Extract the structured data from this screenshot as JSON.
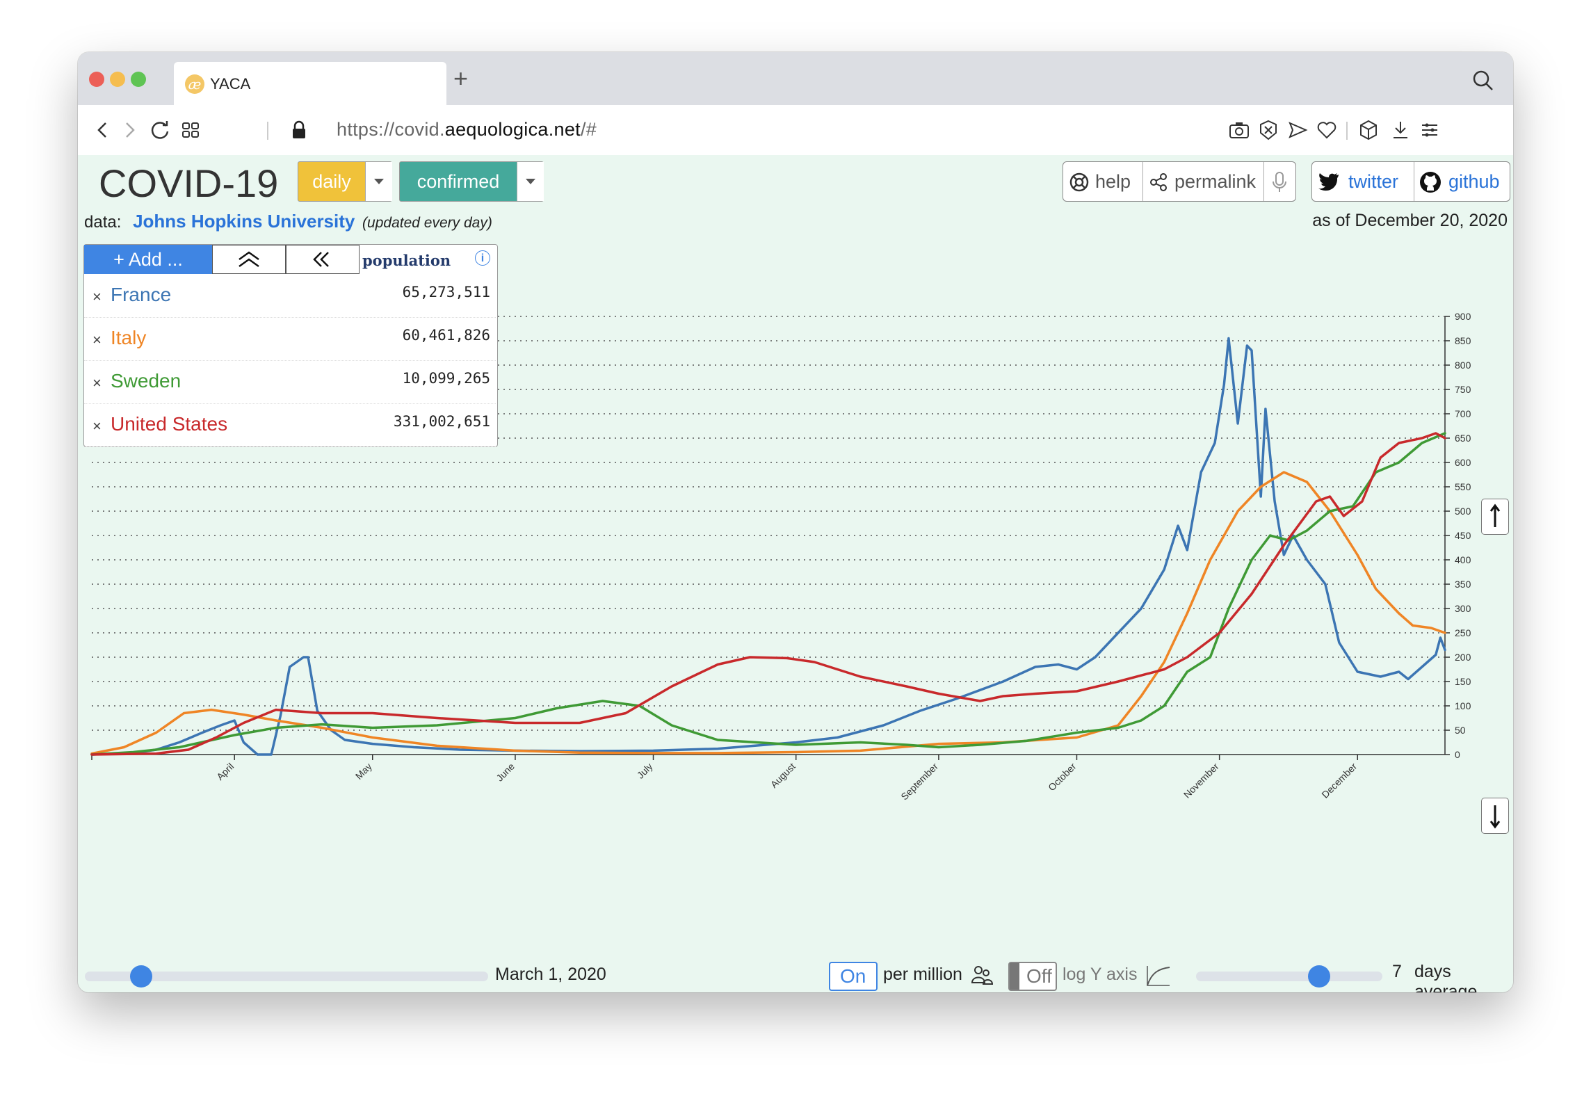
{
  "browser": {
    "tab_title": "YACA",
    "url_prefix": "https://covid.",
    "url_domain": "aequologica.net",
    "url_suffix": "/#",
    "new_tab_symbol": "+",
    "traffic_lights": [
      "#ec5f57",
      "#f5bd4f",
      "#5fc454"
    ]
  },
  "header": {
    "title": "COVID-19",
    "period_label": "daily",
    "metric_label": "confirmed",
    "help_label": "help",
    "permalink_label": "permalink",
    "twitter_label": "twitter",
    "github_label": "github",
    "data_prefix": "data:",
    "source_label": "Johns Hopkins University",
    "update_note": "(updated every day)",
    "as_of": "as of December 20, 2020",
    "colors": {
      "daily": "#f0c23a",
      "confirmed": "#45a99b",
      "link": "#2a73d8"
    }
  },
  "panel": {
    "add_label": "+ Add ...",
    "column_header": "population",
    "info_symbol": "i",
    "countries": [
      {
        "name": "France",
        "population": "65,273,511",
        "color": "#3c75b3"
      },
      {
        "name": "Italy",
        "population": "60,461,826",
        "color": "#ef8525"
      },
      {
        "name": "Sweden",
        "population": "10,099,265",
        "color": "#3f9a35"
      },
      {
        "name": "United States",
        "population": "331,002,651",
        "color": "#c8292b"
      }
    ]
  },
  "controls": {
    "start_date": "March 1, 2020",
    "per_million_state": "On",
    "per_million_label": "per million",
    "log_state": "Off",
    "log_label": "log Y axis",
    "avg_value": "7",
    "avg_label": "days average",
    "start_slider_fraction": 0.14,
    "avg_slider_fraction": 0.66
  },
  "chart_data": {
    "type": "line",
    "title": "",
    "xlabel": "",
    "ylabel": "",
    "ylim": [
      0,
      900
    ],
    "yticks": [
      0,
      50,
      100,
      150,
      200,
      250,
      300,
      350,
      400,
      450,
      500,
      550,
      600,
      650,
      700,
      750,
      800,
      850,
      900
    ],
    "y_axis_side": "right",
    "grid": "horizontal dotted",
    "x_start": "2020-03-01",
    "x_end": "2020-12-20",
    "month_ticks": [
      {
        "label": "April",
        "date": "2020-04-01"
      },
      {
        "label": "May",
        "date": "2020-05-01"
      },
      {
        "label": "June",
        "date": "2020-06-01"
      },
      {
        "label": "July",
        "date": "2020-07-01"
      },
      {
        "label": "August",
        "date": "2020-08-01"
      },
      {
        "label": "September",
        "date": "2020-09-01"
      },
      {
        "label": "October",
        "date": "2020-10-01"
      },
      {
        "label": "November",
        "date": "2020-11-01"
      },
      {
        "label": "December",
        "date": "2020-12-01"
      }
    ],
    "series": [
      {
        "name": "France",
        "color": "#3c75b3",
        "points": [
          [
            "2020-03-01",
            0
          ],
          [
            "2020-03-10",
            3
          ],
          [
            "2020-03-15",
            10
          ],
          [
            "2020-03-20",
            25
          ],
          [
            "2020-03-25",
            45
          ],
          [
            "2020-03-29",
            60
          ],
          [
            "2020-04-01",
            70
          ],
          [
            "2020-04-03",
            25
          ],
          [
            "2020-04-06",
            0
          ],
          [
            "2020-04-09",
            0
          ],
          [
            "2020-04-11",
            80
          ],
          [
            "2020-04-13",
            180
          ],
          [
            "2020-04-16",
            200
          ],
          [
            "2020-04-17",
            200
          ],
          [
            "2020-04-19",
            90
          ],
          [
            "2020-04-22",
            50
          ],
          [
            "2020-04-25",
            30
          ],
          [
            "2020-05-01",
            22
          ],
          [
            "2020-05-10",
            15
          ],
          [
            "2020-05-20",
            10
          ],
          [
            "2020-06-01",
            8
          ],
          [
            "2020-06-15",
            7
          ],
          [
            "2020-07-01",
            8
          ],
          [
            "2020-07-15",
            12
          ],
          [
            "2020-08-01",
            25
          ],
          [
            "2020-08-10",
            35
          ],
          [
            "2020-08-20",
            60
          ],
          [
            "2020-08-28",
            90
          ],
          [
            "2020-09-05",
            115
          ],
          [
            "2020-09-15",
            150
          ],
          [
            "2020-09-22",
            180
          ],
          [
            "2020-09-27",
            185
          ],
          [
            "2020-10-01",
            175
          ],
          [
            "2020-10-05",
            200
          ],
          [
            "2020-10-10",
            250
          ],
          [
            "2020-10-15",
            300
          ],
          [
            "2020-10-20",
            380
          ],
          [
            "2020-10-23",
            470
          ],
          [
            "2020-10-25",
            420
          ],
          [
            "2020-10-28",
            580
          ],
          [
            "2020-10-31",
            640
          ],
          [
            "2020-11-02",
            760
          ],
          [
            "2020-11-03",
            855
          ],
          [
            "2020-11-05",
            680
          ],
          [
            "2020-11-07",
            840
          ],
          [
            "2020-11-08",
            830
          ],
          [
            "2020-11-10",
            530
          ],
          [
            "2020-11-11",
            710
          ],
          [
            "2020-11-13",
            520
          ],
          [
            "2020-11-15",
            410
          ],
          [
            "2020-11-17",
            450
          ],
          [
            "2020-11-20",
            400
          ],
          [
            "2020-11-24",
            350
          ],
          [
            "2020-11-27",
            230
          ],
          [
            "2020-12-01",
            170
          ],
          [
            "2020-12-06",
            160
          ],
          [
            "2020-12-10",
            170
          ],
          [
            "2020-12-12",
            155
          ],
          [
            "2020-12-15",
            180
          ],
          [
            "2020-12-18",
            205
          ],
          [
            "2020-12-19",
            240
          ],
          [
            "2020-12-20",
            215
          ]
        ]
      },
      {
        "name": "Italy",
        "color": "#ef8525",
        "points": [
          [
            "2020-03-01",
            2
          ],
          [
            "2020-03-08",
            15
          ],
          [
            "2020-03-15",
            45
          ],
          [
            "2020-03-21",
            85
          ],
          [
            "2020-03-27",
            92
          ],
          [
            "2020-04-03",
            82
          ],
          [
            "2020-04-10",
            70
          ],
          [
            "2020-04-20",
            55
          ],
          [
            "2020-05-01",
            35
          ],
          [
            "2020-05-15",
            18
          ],
          [
            "2020-06-01",
            8
          ],
          [
            "2020-06-15",
            4
          ],
          [
            "2020-07-01",
            3
          ],
          [
            "2020-07-15",
            3
          ],
          [
            "2020-08-01",
            5
          ],
          [
            "2020-08-15",
            8
          ],
          [
            "2020-09-01",
            22
          ],
          [
            "2020-09-15",
            25
          ],
          [
            "2020-10-01",
            35
          ],
          [
            "2020-10-10",
            60
          ],
          [
            "2020-10-15",
            120
          ],
          [
            "2020-10-20",
            190
          ],
          [
            "2020-10-25",
            290
          ],
          [
            "2020-10-30",
            400
          ],
          [
            "2020-11-05",
            500
          ],
          [
            "2020-11-10",
            550
          ],
          [
            "2020-11-15",
            580
          ],
          [
            "2020-11-20",
            560
          ],
          [
            "2020-11-25",
            500
          ],
          [
            "2020-12-01",
            410
          ],
          [
            "2020-12-05",
            340
          ],
          [
            "2020-12-10",
            290
          ],
          [
            "2020-12-13",
            265
          ],
          [
            "2020-12-17",
            260
          ],
          [
            "2020-12-20",
            250
          ]
        ]
      },
      {
        "name": "Sweden",
        "color": "#3f9a35",
        "points": [
          [
            "2020-03-01",
            0
          ],
          [
            "2020-03-10",
            5
          ],
          [
            "2020-03-20",
            15
          ],
          [
            "2020-04-01",
            40
          ],
          [
            "2020-04-10",
            55
          ],
          [
            "2020-04-20",
            62
          ],
          [
            "2020-05-01",
            55
          ],
          [
            "2020-05-15",
            60
          ],
          [
            "2020-06-01",
            75
          ],
          [
            "2020-06-10",
            95
          ],
          [
            "2020-06-20",
            110
          ],
          [
            "2020-06-28",
            100
          ],
          [
            "2020-07-05",
            60
          ],
          [
            "2020-07-15",
            30
          ],
          [
            "2020-08-01",
            20
          ],
          [
            "2020-08-15",
            25
          ],
          [
            "2020-08-25",
            20
          ],
          [
            "2020-09-01",
            15
          ],
          [
            "2020-09-10",
            20
          ],
          [
            "2020-09-20",
            28
          ],
          [
            "2020-10-01",
            45
          ],
          [
            "2020-10-10",
            55
          ],
          [
            "2020-10-15",
            70
          ],
          [
            "2020-10-20",
            100
          ],
          [
            "2020-10-25",
            170
          ],
          [
            "2020-10-30",
            200
          ],
          [
            "2020-11-03",
            300
          ],
          [
            "2020-11-08",
            400
          ],
          [
            "2020-11-12",
            450
          ],
          [
            "2020-11-16",
            440
          ],
          [
            "2020-11-20",
            460
          ],
          [
            "2020-11-25",
            500
          ],
          [
            "2020-11-30",
            510
          ],
          [
            "2020-12-05",
            580
          ],
          [
            "2020-12-10",
            600
          ],
          [
            "2020-12-15",
            640
          ],
          [
            "2020-12-20",
            660
          ]
        ]
      },
      {
        "name": "United States",
        "color": "#c8292b",
        "points": [
          [
            "2020-03-01",
            0
          ],
          [
            "2020-03-15",
            2
          ],
          [
            "2020-03-22",
            10
          ],
          [
            "2020-03-28",
            35
          ],
          [
            "2020-04-03",
            65
          ],
          [
            "2020-04-10",
            92
          ],
          [
            "2020-04-20",
            85
          ],
          [
            "2020-05-01",
            85
          ],
          [
            "2020-05-15",
            75
          ],
          [
            "2020-06-01",
            65
          ],
          [
            "2020-06-15",
            65
          ],
          [
            "2020-06-25",
            85
          ],
          [
            "2020-07-05",
            140
          ],
          [
            "2020-07-15",
            185
          ],
          [
            "2020-07-22",
            200
          ],
          [
            "2020-07-30",
            198
          ],
          [
            "2020-08-05",
            190
          ],
          [
            "2020-08-15",
            160
          ],
          [
            "2020-08-25",
            140
          ],
          [
            "2020-09-01",
            125
          ],
          [
            "2020-09-10",
            110
          ],
          [
            "2020-09-15",
            120
          ],
          [
            "2020-09-22",
            125
          ],
          [
            "2020-10-01",
            130
          ],
          [
            "2020-10-10",
            150
          ],
          [
            "2020-10-20",
            175
          ],
          [
            "2020-10-25",
            200
          ],
          [
            "2020-11-01",
            250
          ],
          [
            "2020-11-08",
            330
          ],
          [
            "2020-11-15",
            430
          ],
          [
            "2020-11-22",
            520
          ],
          [
            "2020-11-25",
            530
          ],
          [
            "2020-11-28",
            490
          ],
          [
            "2020-12-02",
            520
          ],
          [
            "2020-12-06",
            610
          ],
          [
            "2020-12-10",
            640
          ],
          [
            "2020-12-15",
            650
          ],
          [
            "2020-12-18",
            660
          ],
          [
            "2020-12-20",
            650
          ]
        ]
      }
    ]
  }
}
